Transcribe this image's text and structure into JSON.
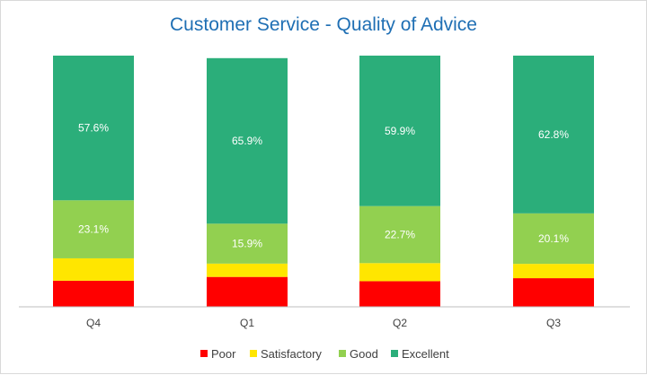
{
  "chart_data": {
    "type": "bar",
    "stacked": true,
    "normalized": true,
    "title": "Customer Service - Quality of Advice",
    "categories": [
      "Q4",
      "Q1",
      "Q2",
      "Q3"
    ],
    "series": [
      {
        "name": "Poor",
        "color": "#ff0000",
        "values": [
          10.4,
          11.9,
          10.2,
          11.4
        ],
        "labels": [
          "",
          "",
          "",
          ""
        ]
      },
      {
        "name": "Satisfactory",
        "color": "#ffe600",
        "values": [
          8.9,
          5.3,
          7.2,
          5.7
        ],
        "labels": [
          "",
          "",
          "",
          ""
        ]
      },
      {
        "name": "Good",
        "color": "#92d050",
        "values": [
          23.1,
          15.9,
          22.7,
          20.1
        ],
        "labels": [
          "23.1%",
          "15.9%",
          "22.7%",
          "20.1%"
        ]
      },
      {
        "name": "Excellent",
        "color": "#2bae7a",
        "values": [
          57.6,
          65.9,
          59.9,
          62.8
        ],
        "labels": [
          "57.6%",
          "65.9%",
          "59.9%",
          "62.8%"
        ]
      }
    ],
    "ylim": [
      0,
      100
    ],
    "xlabel": "",
    "ylabel": "",
    "grid": false,
    "legend": "bottom"
  }
}
